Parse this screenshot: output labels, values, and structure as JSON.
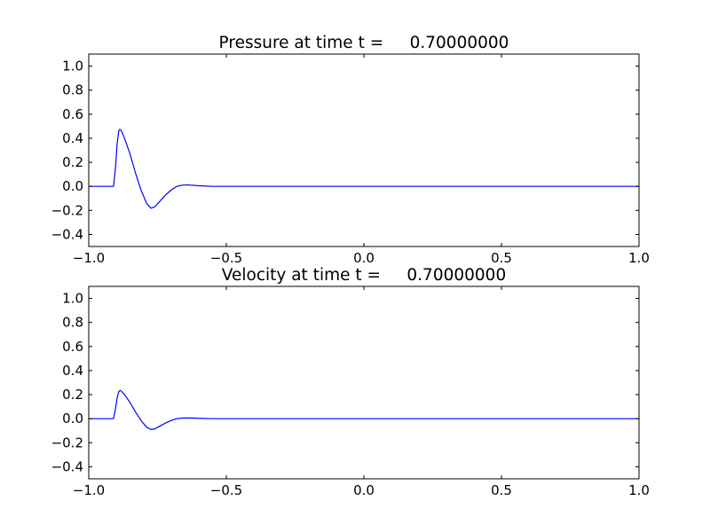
{
  "chart_data": [
    {
      "type": "line",
      "title": "Pressure at time t =     0.70000000",
      "xlim": [
        -1.0,
        1.0
      ],
      "ylim": [
        -0.5,
        1.1
      ],
      "xticks": [
        "−1.0",
        "−0.5",
        "0.0",
        "0.5",
        "1.0"
      ],
      "xtick_values": [
        -1.0,
        -0.5,
        0.0,
        0.5,
        1.0
      ],
      "yticks": [
        "−0.4",
        "−0.2",
        "0.0",
        "0.2",
        "0.4",
        "0.6",
        "0.8",
        "1.0"
      ],
      "ytick_values": [
        -0.4,
        -0.2,
        0.0,
        0.2,
        0.4,
        0.6,
        0.8,
        1.0
      ],
      "grid": false,
      "color": "#0000ff",
      "x": [
        -1.0,
        -0.91,
        -0.903,
        -0.897,
        -0.891,
        -0.887,
        -0.882,
        -0.87,
        -0.85,
        -0.83,
        -0.81,
        -0.79,
        -0.774,
        -0.76,
        -0.74,
        -0.72,
        -0.7,
        -0.68,
        -0.66,
        -0.64,
        -0.6,
        -0.55,
        1.0
      ],
      "y": [
        0.0,
        0.0,
        0.15,
        0.35,
        0.46,
        0.474,
        0.465,
        0.4,
        0.27,
        0.11,
        -0.03,
        -0.14,
        -0.182,
        -0.17,
        -0.12,
        -0.07,
        -0.03,
        0.0,
        0.01,
        0.012,
        0.005,
        0.0,
        0.0
      ]
    },
    {
      "type": "line",
      "title": "Velocity at time t =     0.70000000",
      "xlim": [
        -1.0,
        1.0
      ],
      "ylim": [
        -0.5,
        1.1
      ],
      "xticks": [
        "−1.0",
        "−0.5",
        "0.0",
        "0.5",
        "1.0"
      ],
      "xtick_values": [
        -1.0,
        -0.5,
        0.0,
        0.5,
        1.0
      ],
      "yticks": [
        "−0.4",
        "−0.2",
        "0.0",
        "0.2",
        "0.4",
        "0.6",
        "0.8",
        "1.0"
      ],
      "ytick_values": [
        -0.4,
        -0.2,
        0.0,
        0.2,
        0.4,
        0.6,
        0.8,
        1.0
      ],
      "grid": false,
      "color": "#0000ff",
      "x": [
        -1.0,
        -0.91,
        -0.903,
        -0.897,
        -0.891,
        -0.887,
        -0.882,
        -0.87,
        -0.85,
        -0.83,
        -0.81,
        -0.79,
        -0.774,
        -0.76,
        -0.74,
        -0.72,
        -0.7,
        -0.68,
        -0.66,
        -0.64,
        -0.6,
        -0.55,
        1.0
      ],
      "y": [
        0.0,
        0.0,
        0.08,
        0.17,
        0.225,
        0.234,
        0.23,
        0.2,
        0.135,
        0.055,
        -0.015,
        -0.07,
        -0.09,
        -0.085,
        -0.06,
        -0.035,
        -0.015,
        0.0,
        0.005,
        0.006,
        0.003,
        0.0,
        0.0
      ]
    }
  ]
}
